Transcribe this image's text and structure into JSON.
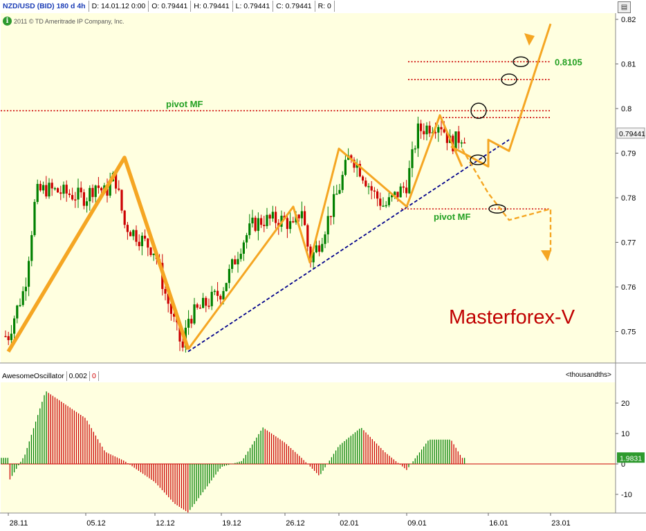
{
  "header": {
    "symbol": "NZD/USD (BID) 180 d 4h",
    "date": "D: 14.01.12 0:00",
    "open": "O: 0.79441",
    "high": "H: 0.79441",
    "low": "L: 0.79441",
    "close": "C: 0.79441",
    "range": "R: 0",
    "copyright": "2011 © TD Ameritrade IP Company, Inc."
  },
  "oscillator_header": {
    "name": "AwesomeOscillator",
    "value": "0.002",
    "zero": "0",
    "units": "<thousandths>"
  },
  "colors": {
    "up_candle": "#008000",
    "down_candle": "#cc0000",
    "pattern": "#f5a623",
    "trendline": "#00008b",
    "pivot_line": "#cc0000",
    "label_green": "#22a022",
    "watermark": "#c00000",
    "panel_bg": "#ffffe0"
  },
  "chart_data": [
    {
      "type": "candlestick",
      "title": "NZD/USD (BID) 180 d 4h",
      "x_ticks": [
        "28.11",
        "05.12",
        "12.12",
        "19.12",
        "26.12",
        "02.01",
        "09.01",
        "16.01",
        "23.01"
      ],
      "y_ticks": [
        "0.82",
        "0.81",
        "0.8",
        "0.79",
        "0.78",
        "0.77",
        "0.76",
        "0.75"
      ],
      "ylim": [
        0.744,
        0.822
      ],
      "last_price": "0.79441",
      "price_path": {
        "dates": [
          "28.11",
          "29.11",
          "30.11",
          "01.12",
          "02.12",
          "05.12",
          "06.12",
          "07.12",
          "08.12",
          "09.12",
          "12.12",
          "13.12",
          "14.12",
          "15.12",
          "16.12",
          "19.12",
          "20.12",
          "21.12",
          "22.12",
          "23.12",
          "26.12",
          "27.12",
          "28.12",
          "29.12",
          "30.12",
          "02.01",
          "03.01",
          "04.01",
          "05.01",
          "06.01",
          "09.01",
          "10.01",
          "11.01",
          "12.01",
          "13.01",
          "14.01"
        ],
        "close": [
          0.749,
          0.754,
          0.76,
          0.781,
          0.782,
          0.78,
          0.783,
          0.781,
          0.785,
          0.774,
          0.768,
          0.759,
          0.752,
          0.746,
          0.753,
          0.759,
          0.764,
          0.77,
          0.774,
          0.775,
          0.775,
          0.773,
          0.778,
          0.766,
          0.77,
          0.782,
          0.79,
          0.786,
          0.781,
          0.778,
          0.783,
          0.795,
          0.796,
          0.797,
          0.792,
          0.794
        ]
      },
      "levels": [
        {
          "label": "0.8105",
          "value": 0.8105
        },
        {
          "label": "",
          "value": 0.8065
        },
        {
          "label": "pivot MF",
          "value": 0.7995
        },
        {
          "label": "",
          "value": 0.798
        },
        {
          "label": "pivot MF",
          "value": 0.7775
        }
      ],
      "trendline": {
        "from": [
          "16.12",
          0.7455
        ],
        "to": [
          "18.01",
          0.793
        ]
      },
      "annotations": [
        "pivot MF",
        "pivot MF",
        "0.8105",
        "Masterforex-V"
      ]
    },
    {
      "type": "bar",
      "title": "AwesomeOscillator",
      "x_ticks": [
        "28.11",
        "05.12",
        "12.12",
        "19.12",
        "26.12",
        "02.01",
        "09.01",
        "16.01",
        "23.01"
      ],
      "y_ticks": [
        "20",
        "10",
        "0",
        "-10"
      ],
      "ylim": [
        -16,
        24
      ],
      "last_value": "1.9831",
      "units": "<thousandths>",
      "values_path": {
        "dates": [
          "28.11",
          "30.11",
          "02.12",
          "05.12",
          "07.12",
          "09.12",
          "12.12",
          "14.12",
          "16.12",
          "19.12",
          "21.12",
          "23.12",
          "26.12",
          "28.12",
          "30.12",
          "02.01",
          "04.01",
          "06.01",
          "09.01",
          "11.01",
          "13.01",
          "14.01"
        ],
        "values": [
          -6,
          3,
          24,
          15,
          4,
          1,
          -6,
          -13,
          -16,
          -1,
          1,
          12,
          7,
          2,
          -4,
          6,
          12,
          4,
          -2,
          8,
          8,
          2
        ]
      }
    }
  ]
}
